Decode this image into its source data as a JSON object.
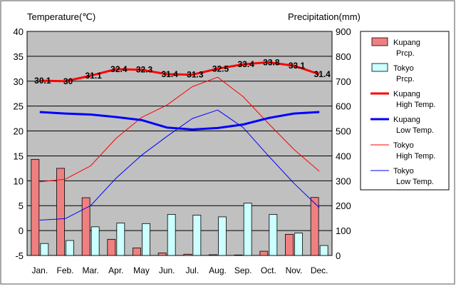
{
  "chart_data": {
    "type": "bar",
    "left_axis_title": "Temperature(℃)",
    "right_axis_title": "Precipitation(mm)",
    "categories": [
      "Jan.",
      "Feb.",
      "Mar.",
      "Apr.",
      "May",
      "Jun.",
      "Jul.",
      "Aug.",
      "Sep.",
      "Oct.",
      "Nov.",
      "Dec."
    ],
    "temp_axis": {
      "min": -5,
      "max": 40,
      "ticks": [
        "-5",
        "0",
        "5",
        "10",
        "15",
        "20",
        "25",
        "30",
        "35",
        "40"
      ]
    },
    "precip_axis": {
      "min": 0,
      "max": 900,
      "ticks": [
        "0",
        "100",
        "200",
        "300",
        "400",
        "500",
        "600",
        "700",
        "800",
        "900"
      ]
    },
    "grid": true,
    "legend_position": "right",
    "colors": {
      "plot_background": "#c0c0c0",
      "kupang_precip": "#f08080",
      "tokyo_precip": "#ccffff",
      "kupang_high": "#ff0000",
      "kupang_low": "#0000ff",
      "tokyo_high": "#ff0000",
      "tokyo_low": "#0000ff"
    },
    "precip_series": [
      {
        "name": "Kupang Prcp.",
        "legend_lines": [
          "Kupang",
          "Prcp."
        ],
        "values": [
          386,
          350,
          232,
          65,
          30,
          10,
          5,
          3,
          2,
          17,
          85,
          233
        ]
      },
      {
        "name": "Tokyo Prcp.",
        "legend_lines": [
          "Tokyo",
          "Prcp."
        ],
        "values": [
          48,
          60,
          115,
          130,
          128,
          165,
          162,
          155,
          210,
          165,
          90,
          40
        ]
      }
    ],
    "temp_series": [
      {
        "name": "Kupang High Temp.",
        "legend_lines": [
          "Kupang",
          "High Temp."
        ],
        "values": [
          30.1,
          30,
          31.1,
          32.4,
          32.3,
          31.4,
          31.3,
          32.5,
          33.4,
          33.8,
          33.1,
          31.4
        ],
        "labels": [
          "30.1",
          "30",
          "31.1",
          "32.4",
          "32.3",
          "31.4",
          "31.3",
          "32.5",
          "33.4",
          "33.8",
          "33.1",
          "31.4"
        ]
      },
      {
        "name": "Kupang Low Temp.",
        "legend_lines": [
          "Kupang",
          "Low Temp."
        ],
        "values": [
          23.8,
          23.5,
          23.3,
          22.8,
          22.2,
          20.7,
          20.3,
          20.6,
          21.3,
          22.6,
          23.5,
          23.8
        ]
      },
      {
        "name": "Tokyo High Temp.",
        "legend_lines": [
          "Tokyo",
          "High Temp."
        ],
        "values": [
          9.8,
          10.3,
          13,
          18.5,
          22.7,
          25.2,
          28.9,
          30.8,
          26.9,
          21.5,
          16.3,
          11.9
        ]
      },
      {
        "name": "Tokyo Low Temp.",
        "legend_lines": [
          "Tokyo",
          "Low Temp."
        ],
        "values": [
          2.1,
          2.4,
          5,
          10.5,
          15.1,
          18.9,
          22.5,
          24.2,
          20.7,
          15,
          9.5,
          4.6
        ]
      }
    ]
  }
}
